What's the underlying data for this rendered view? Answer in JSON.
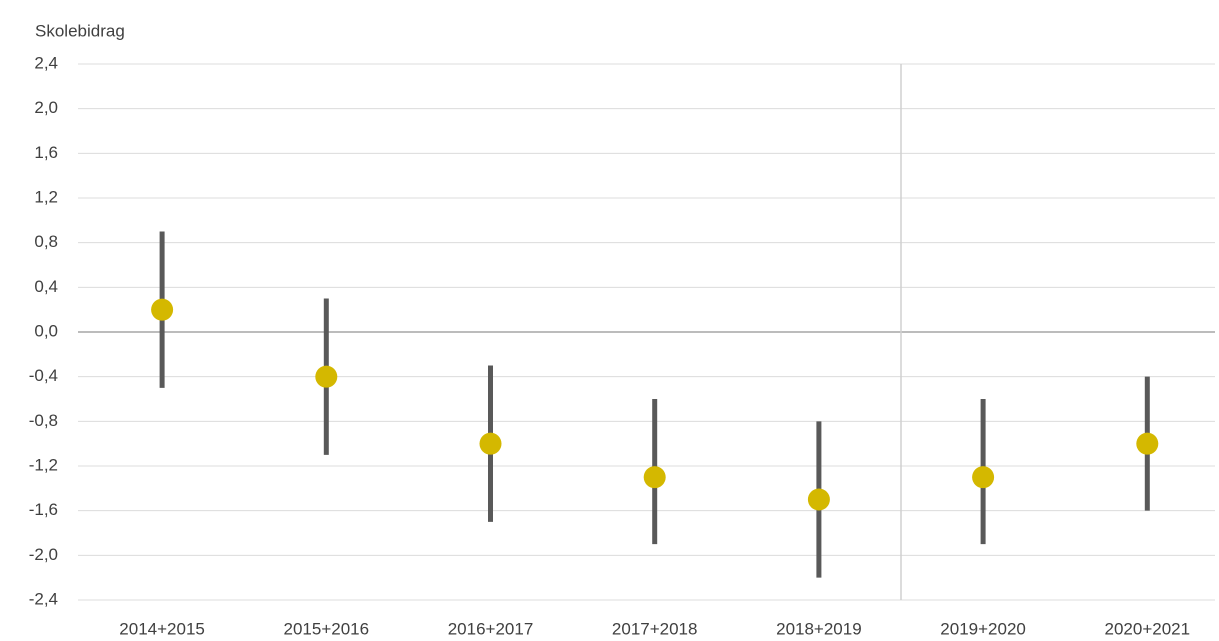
{
  "chart_data": {
    "type": "errorpoint",
    "y_label": "Skolebidrag",
    "categories": [
      "2014+2015",
      "2015+2016",
      "2016+2017",
      "2017+2018",
      "2018+2019",
      "2019+2020",
      "2020+2021"
    ],
    "values": [
      0.2,
      -0.4,
      -1.0,
      -1.3,
      -1.5,
      -1.3,
      -1.0
    ],
    "low": [
      -0.5,
      -1.1,
      -1.7,
      -1.9,
      -2.2,
      -1.9,
      -1.6
    ],
    "high": [
      0.9,
      0.3,
      -0.3,
      -0.6,
      -0.8,
      -0.6,
      -0.4
    ],
    "color": "#d4b800",
    "bar_color": "#595959",
    "ylim": [
      -2.4,
      2.4
    ],
    "yticks": [
      {
        "value": -2.4,
        "label": "-2,4"
      },
      {
        "value": -2.0,
        "label": "-2,0"
      },
      {
        "value": -1.6,
        "label": "-1,6"
      },
      {
        "value": -1.2,
        "label": "-1,2"
      },
      {
        "value": -0.8,
        "label": "-0,8"
      },
      {
        "value": -0.4,
        "label": "-0,4"
      },
      {
        "value": 0,
        "label": "0,0"
      },
      {
        "value": 0.4,
        "label": "0,4"
      },
      {
        "value": 0.8,
        "label": "0,8"
      },
      {
        "value": 1.2,
        "label": "1,2"
      },
      {
        "value": 1.6,
        "label": "1,6"
      },
      {
        "value": 2.0,
        "label": "2,0"
      },
      {
        "value": 2.4,
        "label": "2,4"
      }
    ],
    "grid": true
  }
}
